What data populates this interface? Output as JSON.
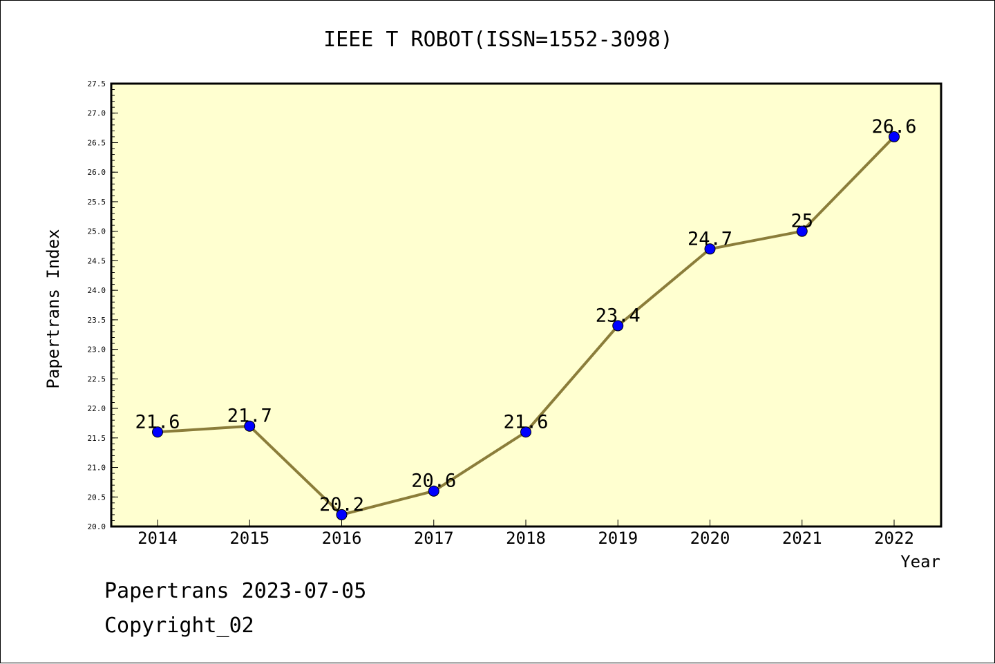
{
  "chart_data": {
    "type": "line",
    "title": "IEEE T ROBOT(ISSN=1552-3098)",
    "xlabel": "Year",
    "ylabel": "Papertrans Index",
    "categories": [
      "2014",
      "2015",
      "2016",
      "2017",
      "2018",
      "2019",
      "2020",
      "2021",
      "2022"
    ],
    "series": [
      {
        "values": [
          21.6,
          21.7,
          20.2,
          20.6,
          21.6,
          23.4,
          24.7,
          25,
          26.6
        ],
        "data_labels": [
          "21.6",
          "21.7",
          "20.2",
          "20.6",
          "21.6",
          "23.4",
          "24.7",
          "25",
          "26.6"
        ]
      }
    ],
    "ylim": [
      20.0,
      27.5
    ],
    "y_ticks": [
      "20.0",
      "20.5",
      "21.0",
      "21.5",
      "22.0",
      "22.5",
      "23.0",
      "23.5",
      "24.0",
      "24.5",
      "25.0",
      "25.5",
      "26.0",
      "26.5",
      "27.0",
      "27.5"
    ],
    "grid": false,
    "colors": {
      "plot_background": "#ffffd0",
      "line": "#8b7d3a",
      "marker": "#0000ff"
    }
  },
  "footer": {
    "line1": "Papertrans 2023-07-05",
    "line2": "Copyright_02"
  }
}
